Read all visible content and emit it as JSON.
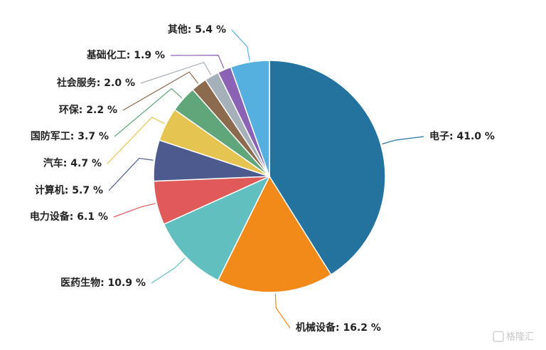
{
  "chart_data": {
    "type": "pie",
    "value_labels": [
      "电子: 41.0 %",
      "机械设备: 16.2 %",
      "医药生物: 10.9 %",
      "电力设备: 6.1 %",
      "计算机: 5.7 %",
      "汽车: 4.7 %",
      "国防军工: 3.7 %",
      "环保: 2.2 %",
      "社会服务: 2.0 %",
      "基础化工: 1.9 %",
      "其他: 5.4 %"
    ],
    "values": [
      41.0,
      16.2,
      10.9,
      6.1,
      5.7,
      4.7,
      3.7,
      2.2,
      2.0,
      1.9,
      5.4
    ],
    "colors": [
      "#24739f",
      "#f28a1a",
      "#62bfbf",
      "#e05a5a",
      "#4c5a8e",
      "#e5c452",
      "#5fa67a",
      "#8b6a4e",
      "#a6b0b8",
      "#8a63b5",
      "#55b0e0"
    ]
  },
  "watermark": "格隆汇"
}
